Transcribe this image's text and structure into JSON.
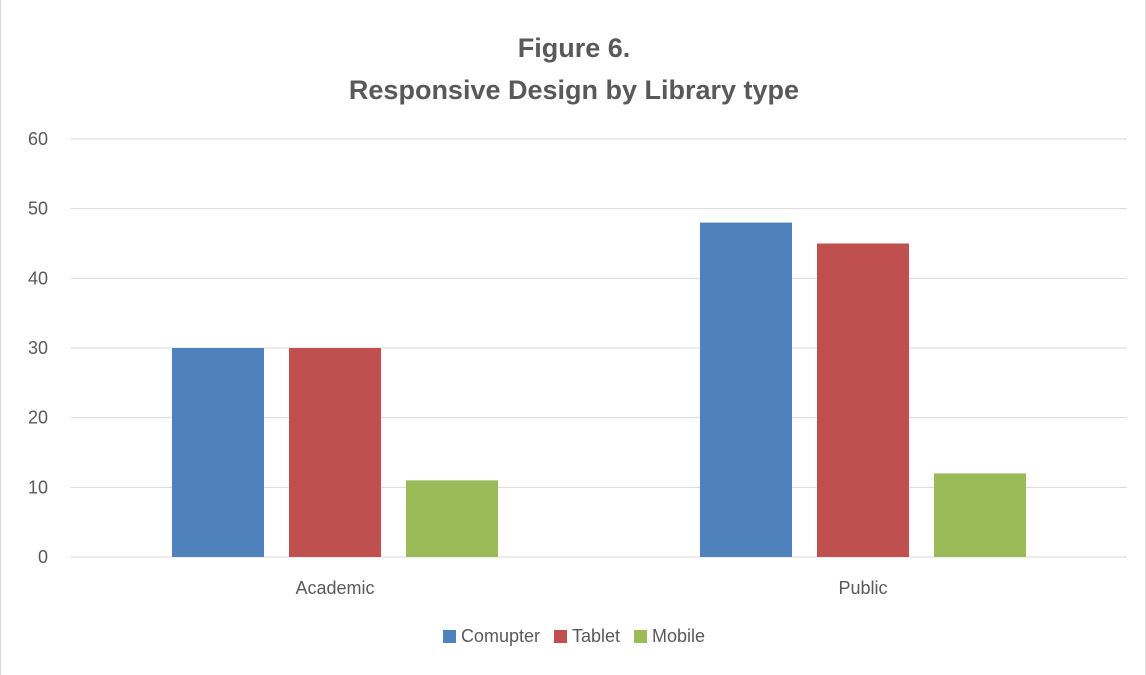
{
  "chart_data": {
    "type": "bar",
    "title_line1": "Figure 6.",
    "title_line2": "Responsive Design by Library type",
    "categories": [
      "Academic",
      "Public"
    ],
    "series": [
      {
        "name": "Comupter",
        "values": [
          30,
          48
        ],
        "color": "#4f81bd"
      },
      {
        "name": "Tablet",
        "values": [
          30,
          45
        ],
        "color": "#c0504d"
      },
      {
        "name": "Mobile",
        "values": [
          11,
          12
        ],
        "color": "#9bbb59"
      }
    ],
    "ylim": [
      0,
      60
    ],
    "yticks": [
      0,
      10,
      20,
      30,
      40,
      50,
      60
    ],
    "grid": true,
    "legend_position": "bottom"
  }
}
